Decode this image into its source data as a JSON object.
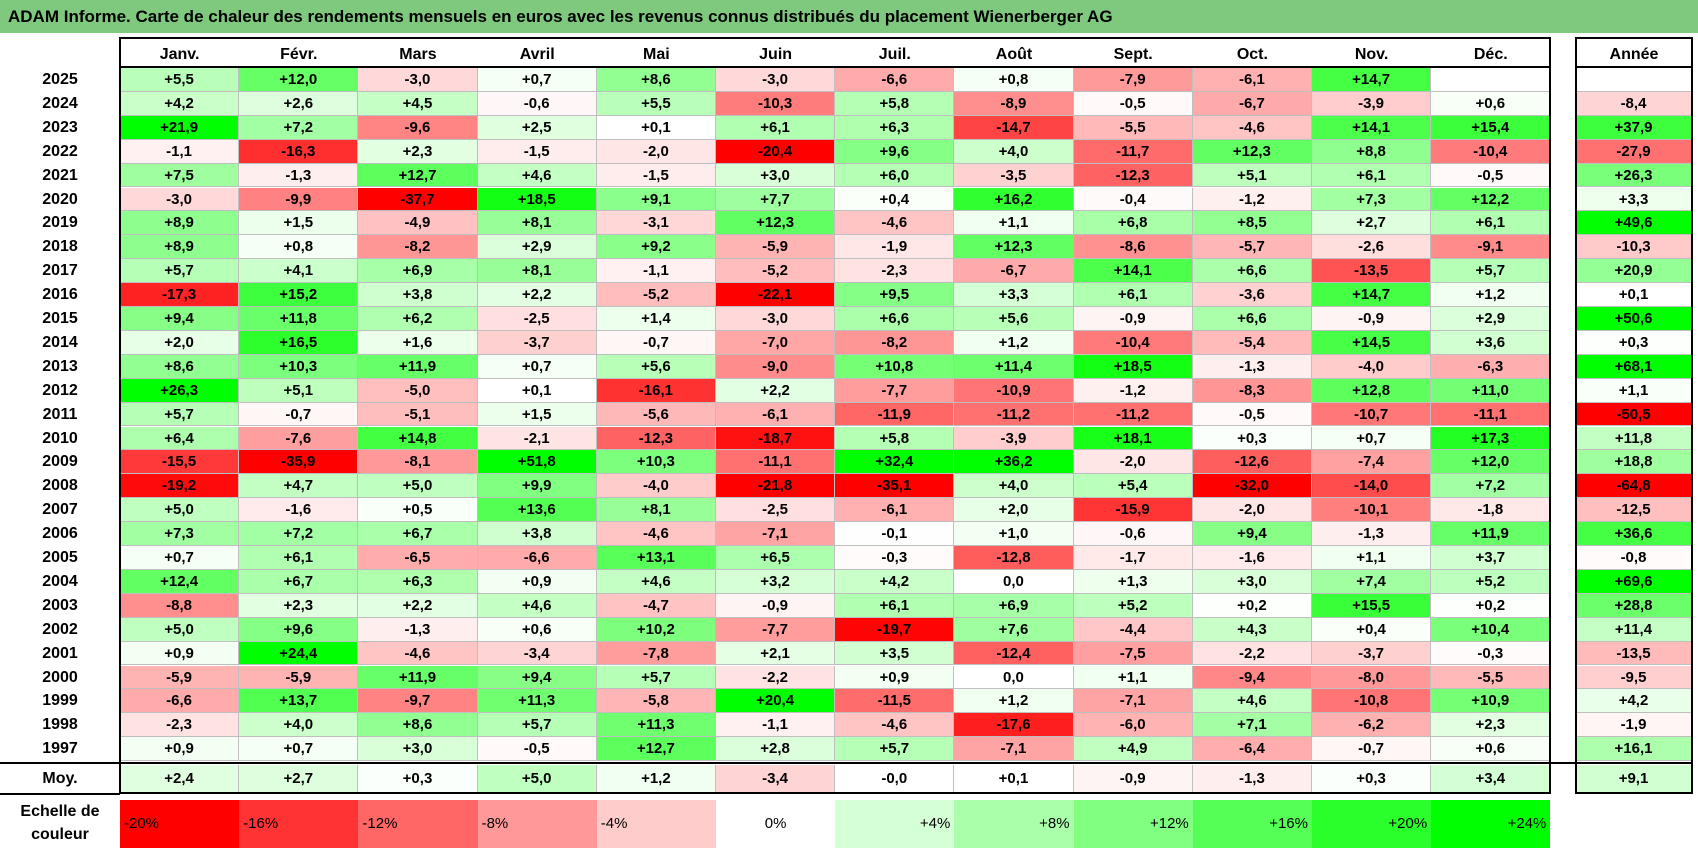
{
  "title": "ADAM Informe. Carte de chaleur des rendements mensuels en euros avec les revenus connus distribués du placement Wienerberger AG",
  "chart_data": {
    "type": "heatmap",
    "title": "ADAM Informe. Carte de chaleur des rendements mensuels en euros avec les revenus connus distribués du placement Wienerberger AG",
    "columns": [
      "Janv.",
      "Févr.",
      "Mars",
      "Avril",
      "Mai",
      "Juin",
      "Juil.",
      "Août",
      "Sept.",
      "Oct.",
      "Nov.",
      "Déc."
    ],
    "year_column": "Année",
    "rows": [
      {
        "year": "2025",
        "values": [
          "+5,5",
          "+12,0",
          "-3,0",
          "+0,7",
          "+8,6",
          "-3,0",
          "-6,6",
          "+0,8",
          "-7,9",
          "-6,1",
          "+14,7",
          ""
        ],
        "annual": ""
      },
      {
        "year": "2024",
        "values": [
          "+4,2",
          "+2,6",
          "+4,5",
          "-0,6",
          "+5,5",
          "-10,3",
          "+5,8",
          "-8,9",
          "-0,5",
          "-6,7",
          "-3,9",
          "+0,6"
        ],
        "annual": "-8,4"
      },
      {
        "year": "2023",
        "values": [
          "+21,9",
          "+7,2",
          "-9,6",
          "+2,5",
          "+0,1",
          "+6,1",
          "+6,3",
          "-14,7",
          "-5,5",
          "-4,6",
          "+14,1",
          "+15,4"
        ],
        "annual": "+37,9"
      },
      {
        "year": "2022",
        "values": [
          "-1,1",
          "-16,3",
          "+2,3",
          "-1,5",
          "-2,0",
          "-20,4",
          "+9,6",
          "+4,0",
          "-11,7",
          "+12,3",
          "+8,8",
          "-10,4"
        ],
        "annual": "-27,9"
      },
      {
        "year": "2021",
        "values": [
          "+7,5",
          "-1,3",
          "+12,7",
          "+4,6",
          "-1,5",
          "+3,0",
          "+6,0",
          "-3,5",
          "-12,3",
          "+5,1",
          "+6,1",
          "-0,5"
        ],
        "annual": "+26,3"
      },
      {
        "year": "2020",
        "values": [
          "-3,0",
          "-9,9",
          "-37,7",
          "+18,5",
          "+9,1",
          "+7,7",
          "+0,4",
          "+16,2",
          "-0,4",
          "-1,2",
          "+7,3",
          "+12,2"
        ],
        "annual": "+3,3"
      },
      {
        "year": "2019",
        "values": [
          "+8,9",
          "+1,5",
          "-4,9",
          "+8,1",
          "-3,1",
          "+12,3",
          "-4,6",
          "+1,1",
          "+6,8",
          "+8,5",
          "+2,7",
          "+6,1"
        ],
        "annual": "+49,6"
      },
      {
        "year": "2018",
        "values": [
          "+8,9",
          "+0,8",
          "-8,2",
          "+2,9",
          "+9,2",
          "-5,9",
          "-1,9",
          "+12,3",
          "-8,6",
          "-5,7",
          "-2,6",
          "-9,1"
        ],
        "annual": "-10,3"
      },
      {
        "year": "2017",
        "values": [
          "+5,7",
          "+4,1",
          "+6,9",
          "+8,1",
          "-1,1",
          "-5,2",
          "-2,3",
          "-6,7",
          "+14,1",
          "+6,6",
          "-13,5",
          "+5,7"
        ],
        "annual": "+20,9"
      },
      {
        "year": "2016",
        "values": [
          "-17,3",
          "+15,2",
          "+3,8",
          "+2,2",
          "-5,2",
          "-22,1",
          "+9,5",
          "+3,3",
          "+6,1",
          "-3,6",
          "+14,7",
          "+1,2"
        ],
        "annual": "+0,1"
      },
      {
        "year": "2015",
        "values": [
          "+9,4",
          "+11,8",
          "+6,2",
          "-2,5",
          "+1,4",
          "-3,0",
          "+6,6",
          "+5,6",
          "-0,9",
          "+6,6",
          "-0,9",
          "+2,9"
        ],
        "annual": "+50,6"
      },
      {
        "year": "2014",
        "values": [
          "+2,0",
          "+16,5",
          "+1,6",
          "-3,7",
          "-0,7",
          "-7,0",
          "-8,2",
          "+1,2",
          "-10,4",
          "-5,4",
          "+14,5",
          "+3,6"
        ],
        "annual": "+0,3"
      },
      {
        "year": "2013",
        "values": [
          "+8,6",
          "+10,3",
          "+11,9",
          "+0,7",
          "+5,6",
          "-9,0",
          "+10,8",
          "+11,4",
          "+18,5",
          "-1,3",
          "-4,0",
          "-6,3"
        ],
        "annual": "+68,1"
      },
      {
        "year": "2012",
        "values": [
          "+26,3",
          "+5,1",
          "-5,0",
          "+0,1",
          "-16,1",
          "+2,2",
          "-7,7",
          "-10,9",
          "-1,2",
          "-8,3",
          "+12,8",
          "+11,0"
        ],
        "annual": "+1,1"
      },
      {
        "year": "2011",
        "values": [
          "+5,7",
          "-0,7",
          "-5,1",
          "+1,5",
          "-5,6",
          "-6,1",
          "-11,9",
          "-11,2",
          "-11,2",
          "-0,5",
          "-10,7",
          "-11,1"
        ],
        "annual": "-50,5"
      },
      {
        "year": "2010",
        "values": [
          "+6,4",
          "-7,6",
          "+14,8",
          "-2,1",
          "-12,3",
          "-18,7",
          "+5,8",
          "-3,9",
          "+18,1",
          "+0,3",
          "+0,7",
          "+17,3"
        ],
        "annual": "+11,8"
      },
      {
        "year": "2009",
        "values": [
          "-15,5",
          "-35,9",
          "-8,1",
          "+51,8",
          "+10,3",
          "-11,1",
          "+32,4",
          "+36,2",
          "-2,0",
          "-12,6",
          "-7,4",
          "+12,0"
        ],
        "annual": "+18,8"
      },
      {
        "year": "2008",
        "values": [
          "-19,2",
          "+4,7",
          "+5,0",
          "+9,9",
          "-4,0",
          "-21,8",
          "-35,1",
          "+4,0",
          "+5,4",
          "-32,0",
          "-14,0",
          "+7,2"
        ],
        "annual": "-64,8"
      },
      {
        "year": "2007",
        "values": [
          "+5,0",
          "-1,6",
          "+0,5",
          "+13,6",
          "+8,1",
          "-2,5",
          "-6,1",
          "+2,0",
          "-15,9",
          "-2,0",
          "-10,1",
          "-1,8"
        ],
        "annual": "-12,5"
      },
      {
        "year": "2006",
        "values": [
          "+7,3",
          "+7,2",
          "+6,7",
          "+3,8",
          "-4,6",
          "-7,1",
          "-0,1",
          "+1,0",
          "-0,6",
          "+9,4",
          "-1,3",
          "+11,9"
        ],
        "annual": "+36,6"
      },
      {
        "year": "2005",
        "values": [
          "+0,7",
          "+6,1",
          "-6,5",
          "-6,6",
          "+13,1",
          "+6,5",
          "-0,3",
          "-12,8",
          "-1,7",
          "-1,6",
          "+1,1",
          "+3,7"
        ],
        "annual": "-0,8"
      },
      {
        "year": "2004",
        "values": [
          "+12,4",
          "+6,7",
          "+6,3",
          "+0,9",
          "+4,6",
          "+3,2",
          "+4,2",
          "0,0",
          "+1,3",
          "+3,0",
          "+7,4",
          "+5,2"
        ],
        "annual": "+69,6"
      },
      {
        "year": "2003",
        "values": [
          "-8,8",
          "+2,3",
          "+2,2",
          "+4,6",
          "-4,7",
          "-0,9",
          "+6,1",
          "+6,9",
          "+5,2",
          "+0,2",
          "+15,5",
          "+0,2"
        ],
        "annual": "+28,8"
      },
      {
        "year": "2002",
        "values": [
          "+5,0",
          "+9,6",
          "-1,3",
          "+0,6",
          "+10,2",
          "-7,7",
          "-19,7",
          "+7,6",
          "-4,4",
          "+4,3",
          "+0,4",
          "+10,4"
        ],
        "annual": "+11,4"
      },
      {
        "year": "2001",
        "values": [
          "+0,9",
          "+24,4",
          "-4,6",
          "-3,4",
          "-7,8",
          "+2,1",
          "+3,5",
          "-12,4",
          "-7,5",
          "-2,2",
          "-3,7",
          "-0,3"
        ],
        "annual": "-13,5"
      },
      {
        "year": "2000",
        "values": [
          "-5,9",
          "-5,9",
          "+11,9",
          "+9,4",
          "+5,7",
          "-2,2",
          "+0,9",
          "0,0",
          "+1,1",
          "-9,4",
          "-8,0",
          "-5,5"
        ],
        "annual": "-9,5"
      },
      {
        "year": "1999",
        "values": [
          "-6,6",
          "+13,7",
          "-9,7",
          "+11,3",
          "-5,8",
          "+20,4",
          "-11,5",
          "+1,2",
          "-7,1",
          "+4,6",
          "-10,8",
          "+10,9"
        ],
        "annual": "+4,2"
      },
      {
        "year": "1998",
        "values": [
          "-2,3",
          "+4,0",
          "+8,6",
          "+5,7",
          "+11,3",
          "-1,1",
          "-4,6",
          "-17,6",
          "-6,0",
          "+7,1",
          "-6,2",
          "+2,3"
        ],
        "annual": "-1,9"
      },
      {
        "year": "1997",
        "values": [
          "+0,9",
          "+0,7",
          "+3,0",
          "-0,5",
          "+12,7",
          "+2,8",
          "+5,7",
          "-7,1",
          "+4,9",
          "-6,4",
          "-0,7",
          "+0,6"
        ],
        "annual": "+16,1"
      }
    ],
    "average": {
      "label": "Moy.",
      "values": [
        "+2,4",
        "+2,7",
        "+0,3",
        "+5,0",
        "+1,2",
        "-3,4",
        "-0,0",
        "+0,1",
        "-0,9",
        "-1,3",
        "+0,3",
        "+3,4"
      ],
      "annual": "+9,1"
    },
    "color_scale": {
      "label": "Echelle de couleur",
      "stops": [
        "-20%",
        "-16%",
        "-12%",
        "-8%",
        "-4%",
        "0%",
        "+4%",
        "+8%",
        "+12%",
        "+16%",
        "+20%",
        "+24%"
      ],
      "negative_color": "#ff0000",
      "neutral_color": "#ffffff",
      "positive_color": "#00ff00"
    }
  }
}
